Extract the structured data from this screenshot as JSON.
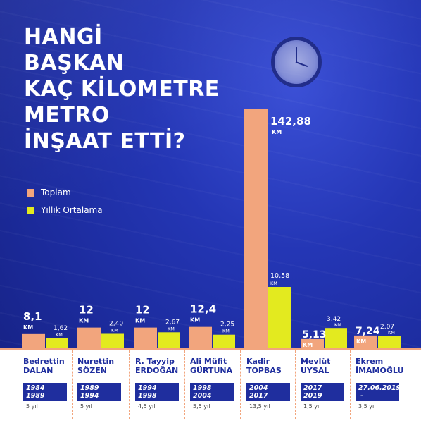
{
  "title_lines": [
    "HANGİ",
    "BAŞKAN",
    "KAÇ KİLOMETRE",
    "METRO",
    "İNŞAAT ETTİ?"
  ],
  "legend": [
    {
      "label": "Toplam",
      "color": "#f2a57d"
    },
    {
      "label": "Yıllık Ortalama",
      "color": "#e3ea1f"
    }
  ],
  "colors": {
    "total": "#f2a57d",
    "average": "#e3ea1f",
    "term_bg": "#1f2e9e",
    "name_text": "#1f2e9e"
  },
  "chart_data": {
    "type": "bar",
    "categories": [
      "Bedrettin DALAN",
      "Nurettin SÖZEN",
      "R. Tayyip ERDOĞAN",
      "Ali Müfit GÜRTUNA",
      "Kadir TOPBAŞ",
      "Mevlüt UYSAL",
      "Ekrem İMAMOĞLU"
    ],
    "series": [
      {
        "name": "Toplam",
        "values": [
          8.1,
          12,
          12,
          12.4,
          142.88,
          5.13,
          7.24
        ]
      },
      {
        "name": "Yıllık Ortalama",
        "values": [
          1.62,
          2.4,
          2.67,
          2.25,
          10.58,
          3.42,
          2.07
        ]
      }
    ],
    "total_labels": [
      "8,1",
      "12",
      "12",
      "12,4",
      "142,88",
      "5,13",
      "7,24"
    ],
    "average_labels": [
      "1,62",
      "2,40",
      "2,67",
      "2,25",
      "10,58",
      "3,42",
      "2,07"
    ],
    "unit": "KM",
    "ylim": [
      0,
      142.88
    ]
  },
  "mayors": [
    {
      "first": "Bedrettin",
      "last": "DALAN",
      "start": "1984",
      "end": "1989",
      "duration": "5 yıl"
    },
    {
      "first": "Nurettin",
      "last": "SÖZEN",
      "start": "1989",
      "end": "1994",
      "duration": "5 yıl"
    },
    {
      "first": "R. Tayyip",
      "last": "ERDOĞAN",
      "start": "1994",
      "end": "1998",
      "duration": "4,5 yıl"
    },
    {
      "first": "Ali Müfit",
      "last": "GÜRTUNA",
      "start": "1998",
      "end": "2004",
      "duration": "5,5 yıl"
    },
    {
      "first": "Kadir",
      "last": "TOPBAŞ",
      "start": "2004",
      "end": "2017",
      "duration": "13,5 yıl"
    },
    {
      "first": "Mevlüt",
      "last": "UYSAL",
      "start": "2017",
      "end": "2019",
      "duration": "1,5 yıl"
    },
    {
      "first": "Ekrem",
      "last": "İMAMOĞLU",
      "start": "27.06.2019",
      "end": "-",
      "duration": "3,5 yıl"
    }
  ]
}
